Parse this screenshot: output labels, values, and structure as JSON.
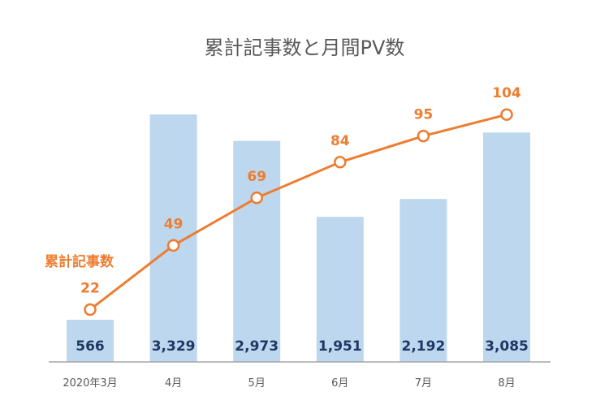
{
  "chart_data": {
    "type": "bar",
    "title": "累計記事数と月間PV数",
    "categories": [
      "2020年3月",
      "4月",
      "5月",
      "6月",
      "7月",
      "8月"
    ],
    "series": [
      {
        "type": "bar",
        "values": [
          566,
          3329,
          2973,
          1951,
          2192,
          3085
        ],
        "labels": [
          "566",
          "3,329",
          "2,973",
          "1,951",
          "2,192",
          "3,085"
        ],
        "color": "#bdd7ee"
      },
      {
        "type": "line",
        "name": "累計記事数",
        "values": [
          22,
          49,
          69,
          84,
          95,
          104
        ],
        "labels": [
          "22",
          "49",
          "69",
          "84",
          "95",
          "104"
        ],
        "color": "#ed7d31"
      }
    ],
    "ylim_bars": [
      0,
      3700
    ],
    "ylim_line": [
      0,
      130
    ],
    "legend": "none",
    "grid": false
  }
}
